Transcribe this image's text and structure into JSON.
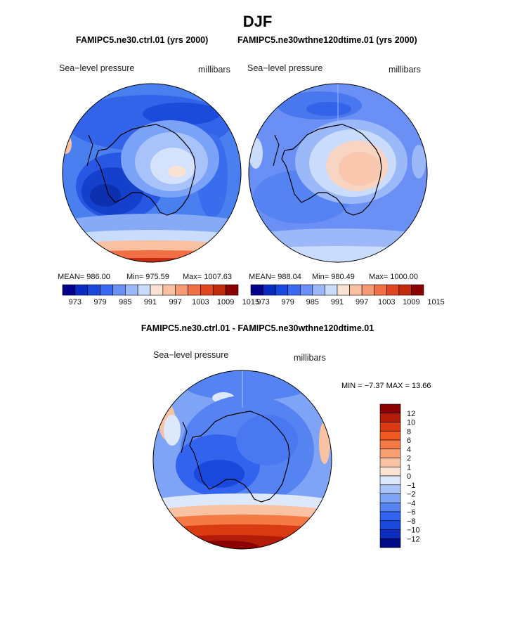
{
  "figure": {
    "title": "DJF",
    "panel_left_title": "FAMIPC5.ne30.ctrl.01 (yrs 2000)",
    "panel_right_title": "FAMIPC5.ne30wthne120dtime.01 (yrs 2000)",
    "diff_title": "FAMIPC5.ne30.ctrl.01 - FAMIPC5.ne30wthne120dtime.01"
  },
  "panels": {
    "left": {
      "variable": "Sea−level pressure",
      "units": "millibars",
      "mean_label": "MEAN= 986.00",
      "min_label": "Min= 975.59",
      "max_label": "Max= 1007.63"
    },
    "right": {
      "variable": "Sea−level pressure",
      "units": "millibars",
      "mean_label": "MEAN= 988.04",
      "min_label": "Min= 980.49",
      "max_label": "Max= 1000.00"
    },
    "diff": {
      "variable": "Sea−level pressure",
      "units": "millibars",
      "minmax_label": "MIN =  −7.37 MAX =  13.66"
    }
  },
  "colorbar_h": {
    "colors": [
      "#00008b",
      "#0a2bbf",
      "#1848dd",
      "#3a68f0",
      "#6a90f5",
      "#9bb8f8",
      "#c9dcfb",
      "#fbe3d3",
      "#f9c0a1",
      "#f59a75",
      "#f06f45",
      "#e1451f",
      "#c22a0e",
      "#8b0000"
    ],
    "labels": [
      "973",
      "979",
      "985",
      "991",
      "997",
      "1003",
      "1009",
      "1015"
    ]
  },
  "colorbar_v": {
    "colors": [
      "#8b0000",
      "#b31c08",
      "#d93a12",
      "#f05a22",
      "#f57b46",
      "#f79e72",
      "#f9c2a2",
      "#fbe4d4",
      "#dde8fa",
      "#a9c4f9",
      "#7fa4f6",
      "#5683f2",
      "#3163ee",
      "#1a47dc",
      "#0c2dbd",
      "#000a85"
    ],
    "labels": [
      "12",
      "10",
      "8",
      "6",
      "4",
      "2",
      "1",
      "0",
      "−1",
      "−2",
      "−4",
      "−6",
      "−8",
      "−10",
      "−12"
    ]
  }
}
